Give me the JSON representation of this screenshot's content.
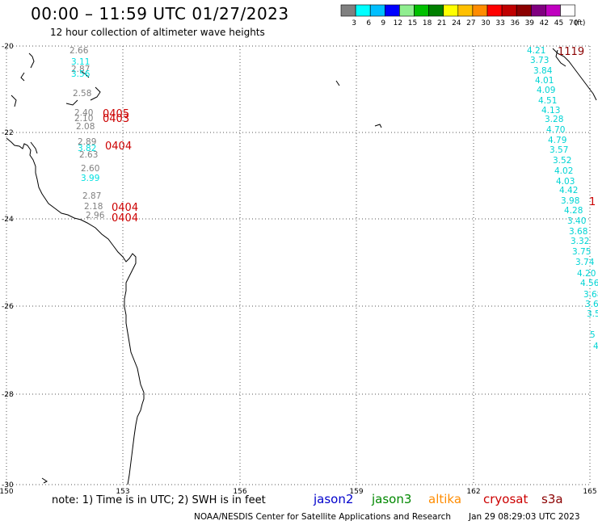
{
  "header": {
    "title": "00:00 – 11:59 UTC 01/27/2023",
    "subtitle": "12 hour collection of altimeter wave heights"
  },
  "color_scale": {
    "thresholds": [
      "3",
      "6",
      "9",
      "12",
      "15",
      "18",
      "21",
      "24",
      "27",
      "30",
      "33",
      "36",
      "39",
      "42",
      "45",
      "70"
    ],
    "unit": "(ft)",
    "colors": [
      "#808080",
      "#00ffff",
      "#00bfff",
      "#0000ff",
      "#90ee90",
      "#00c000",
      "#008000",
      "#ffff00",
      "#ffc000",
      "#ff8c00",
      "#ff0000",
      "#c00000",
      "#8b0000",
      "#800080",
      "#c000c0",
      "#ffffff"
    ]
  },
  "axes": {
    "lon_ticks": [
      "150",
      "153",
      "156",
      "159",
      "162",
      "165"
    ],
    "lat_ticks": [
      "-20",
      "-22",
      "-24",
      "-26",
      "-28",
      "-30"
    ],
    "lon_range": [
      150,
      165
    ],
    "lat_range": [
      -30,
      -20
    ]
  },
  "west_track": {
    "readings": [
      {
        "v": "2.66",
        "c": "#808080"
      },
      {
        "v": "3.11",
        "c": "#00e0e0"
      },
      {
        "v": "2.87",
        "c": "#808080"
      },
      {
        "v": "3.56",
        "c": "#00e0e0"
      },
      {
        "v": "2.58",
        "c": "#808080"
      },
      {
        "v": "2.40",
        "c": "#808080"
      },
      {
        "v": "2.10",
        "c": "#808080"
      },
      {
        "v": "2.08",
        "c": "#808080"
      },
      {
        "v": "2.89",
        "c": "#808080"
      },
      {
        "v": "3.82",
        "c": "#00e0e0"
      },
      {
        "v": "2.63",
        "c": "#808080"
      },
      {
        "v": "2.60",
        "c": "#808080"
      },
      {
        "v": "3.99",
        "c": "#00e0e0"
      },
      {
        "v": "2.87",
        "c": "#808080"
      },
      {
        "v": "2.18",
        "c": "#808080"
      },
      {
        "v": "2.96",
        "c": "#808080"
      }
    ],
    "times": [
      "0405",
      "0403",
      "0404",
      "0404",
      "0404"
    ]
  },
  "east_track": {
    "readings": [
      "4.21",
      "3.73",
      "3.84",
      "4.01",
      "4.09",
      "4.51",
      "4.13",
      "3.28",
      "4.70",
      "4.79",
      "3.57",
      "3.52",
      "4.02",
      "4.03",
      "4.42",
      "3.98",
      "4.28",
      "3.40",
      "3.68",
      "3.32",
      "3.75",
      "3.74",
      "4.20",
      "4.56",
      "3.68",
      "3.6",
      "3.5",
      "5",
      "4"
    ],
    "times": [
      "1119",
      "1"
    ]
  },
  "footer": {
    "note": "note:  1) Time is in UTC;  2) SWH is in feet",
    "missions": [
      {
        "name": "jason2",
        "color": "#0000cc"
      },
      {
        "name": "jason3",
        "color": "#008800"
      },
      {
        "name": "altika",
        "color": "#ff8c00"
      },
      {
        "name": "cryosat",
        "color": "#cc0000"
      },
      {
        "name": "s3a",
        "color": "#8b0000"
      }
    ],
    "credit": "NOAA/NESDIS Center for Satellite Applications and Research",
    "generated": "Jan 29 08:29:03 UTC 2023"
  }
}
